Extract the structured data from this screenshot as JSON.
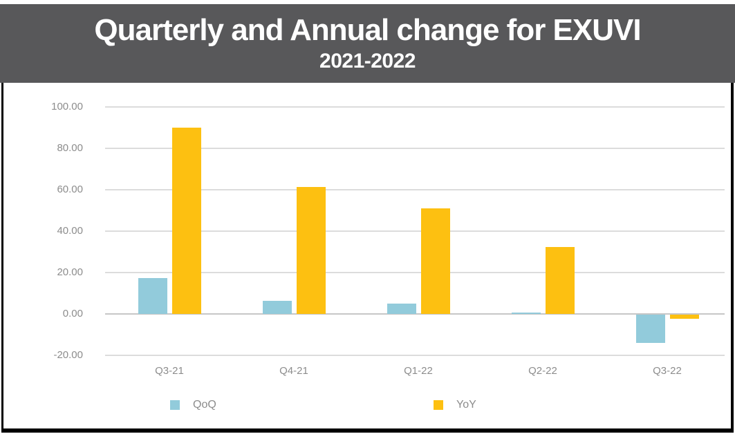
{
  "header": {
    "title": "Quarterly and Annual change for EXUVI",
    "subtitle": "2021-2022"
  },
  "colors": {
    "banner_background": "#58585a",
    "banner_text": "#ffffff",
    "qoq_bar": "#92cbdb",
    "yoy_bar": "#fdc011",
    "gridline": "#dcdcdc",
    "zero_line": "#c6c6c6",
    "tick_text": "#8c8c8c",
    "frame_border": "#000000"
  },
  "chart_data": {
    "type": "bar",
    "title": "Quarterly and Annual change for EXUVI",
    "subtitle": "2021-2022",
    "categories": [
      "Q3-21",
      "Q4-21",
      "Q1-22",
      "Q2-22",
      "Q3-22"
    ],
    "series": [
      {
        "name": "QoQ",
        "color": "#92cbdb",
        "values": [
          17.5,
          6.5,
          5.0,
          0.6,
          -13.5
        ]
      },
      {
        "name": "YoY",
        "color": "#fdc011",
        "values": [
          90.0,
          61.5,
          51.0,
          32.5,
          -2.0
        ]
      }
    ],
    "ylim": [
      -20,
      100
    ],
    "ytick_step": 20,
    "ytick_labels": [
      "100.00",
      "80.00",
      "60.00",
      "40.00",
      "20.00",
      "0.00",
      "-20.00"
    ],
    "grid": true,
    "legend_position": "bottom"
  }
}
